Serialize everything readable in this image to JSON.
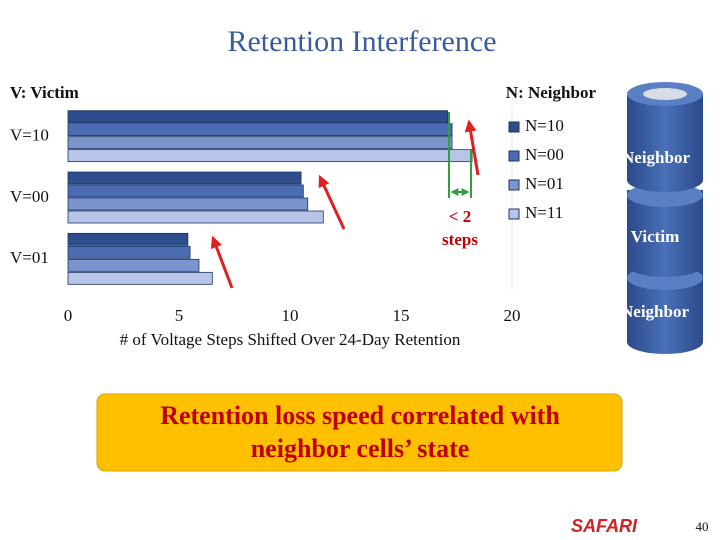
{
  "title": "Retention Interference",
  "chart_data": {
    "type": "barh",
    "victim_label": "V: Victim",
    "neighbor_label": "N: Neighbor",
    "xlabel": "# of Voltage Steps Shifted Over 24-Day Retention",
    "categories": [
      "V=10",
      "V=00",
      "V=01"
    ],
    "series": [
      {
        "name": "N=10",
        "color": "#2e4d8c",
        "values": [
          17.1,
          10.5,
          5.4
        ]
      },
      {
        "name": "N=00",
        "color": "#4a6cb3",
        "values": [
          17.3,
          10.6,
          5.5
        ]
      },
      {
        "name": "N=01",
        "color": "#7b94cd",
        "values": [
          17.3,
          10.8,
          5.9
        ]
      },
      {
        "name": "N=11",
        "color": "#b7c5e8",
        "values": [
          18.2,
          11.5,
          6.5
        ]
      }
    ],
    "xlim": [
      0,
      20
    ],
    "xticks": [
      0,
      5,
      10,
      15,
      20
    ],
    "legend": "right",
    "annotation": [
      "< 2",
      "steps"
    ]
  },
  "diagram": {
    "labels": [
      "Neighbor",
      "Victim",
      "Neighbor"
    ]
  },
  "callout": [
    "Retention loss speed correlated with",
    "neighbor cells’ state"
  ],
  "footer": {
    "brand": "SAFARI",
    "page": "40"
  }
}
